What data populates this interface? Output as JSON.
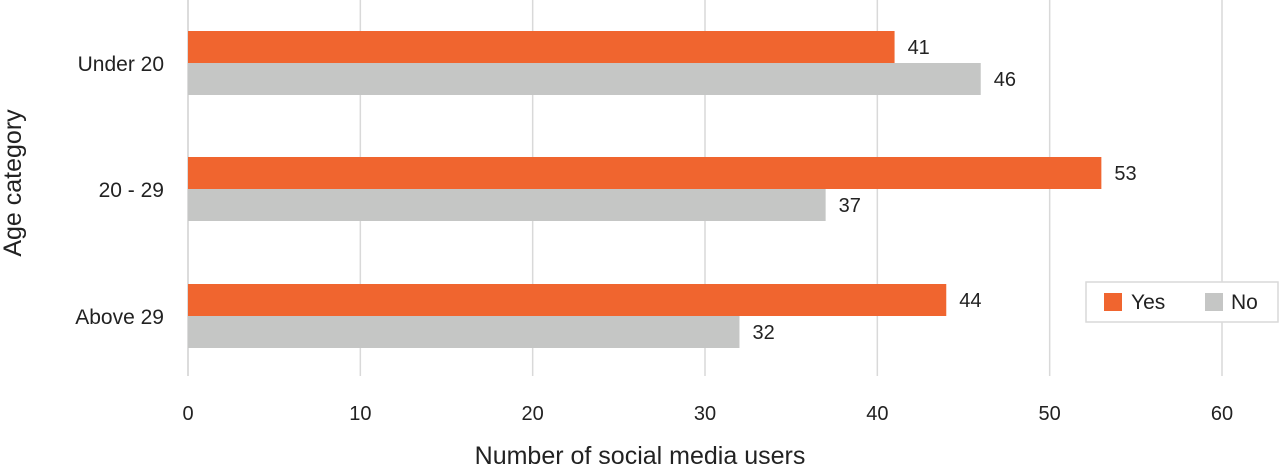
{
  "chart_data": {
    "type": "bar",
    "orientation": "horizontal",
    "categories": [
      "Under 20",
      "20 - 29",
      "Above 29"
    ],
    "series": [
      {
        "name": "Yes",
        "color": "#f0652f",
        "values": [
          41,
          53,
          44
        ]
      },
      {
        "name": "No",
        "color": "#c5c6c5",
        "values": [
          46,
          37,
          32
        ]
      }
    ],
    "xlabel": "Number of social media users",
    "ylabel": "Age category",
    "xlim": [
      0,
      60
    ],
    "xticks": [
      0,
      10,
      20,
      30,
      40,
      50,
      60
    ],
    "grid": "vertical",
    "grid_color": "#d9d9d9",
    "legend_position": "bottom-right",
    "data_labels": true
  }
}
